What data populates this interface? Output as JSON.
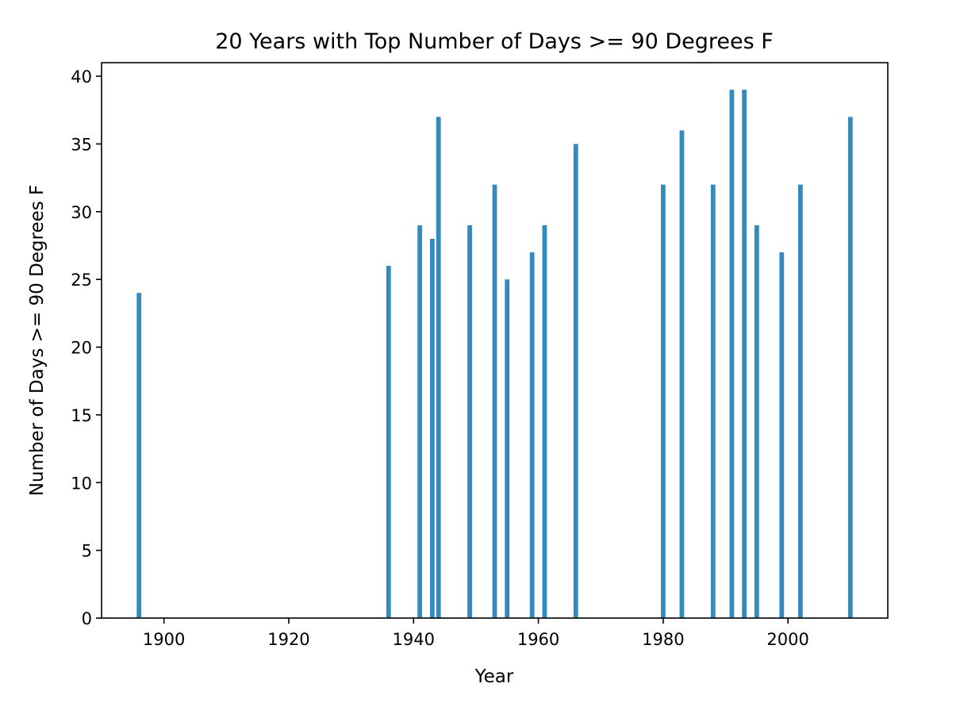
{
  "chart_data": {
    "type": "bar",
    "title": "20 Years with Top Number of Days >= 90 Degrees F",
    "xlabel": "Year",
    "ylabel": "Number of Days >= 90 Degrees F",
    "xlim": [
      1890,
      2016
    ],
    "ylim": [
      0,
      41
    ],
    "x_ticks": [
      1900,
      1920,
      1940,
      1960,
      1980,
      2000
    ],
    "y_ticks": [
      0,
      5,
      10,
      15,
      20,
      25,
      30,
      35,
      40
    ],
    "grid": false,
    "legend": "none",
    "bar_color": "#348ABD",
    "x": [
      1896,
      1936,
      1941,
      1943,
      1944,
      1949,
      1953,
      1955,
      1959,
      1961,
      1966,
      1980,
      1983,
      1988,
      1991,
      1993,
      1995,
      1999,
      2002,
      2010
    ],
    "values": [
      24,
      26,
      29,
      28,
      37,
      29,
      32,
      25,
      27,
      29,
      35,
      32,
      36,
      32,
      39,
      39,
      29,
      27,
      32,
      37
    ]
  }
}
